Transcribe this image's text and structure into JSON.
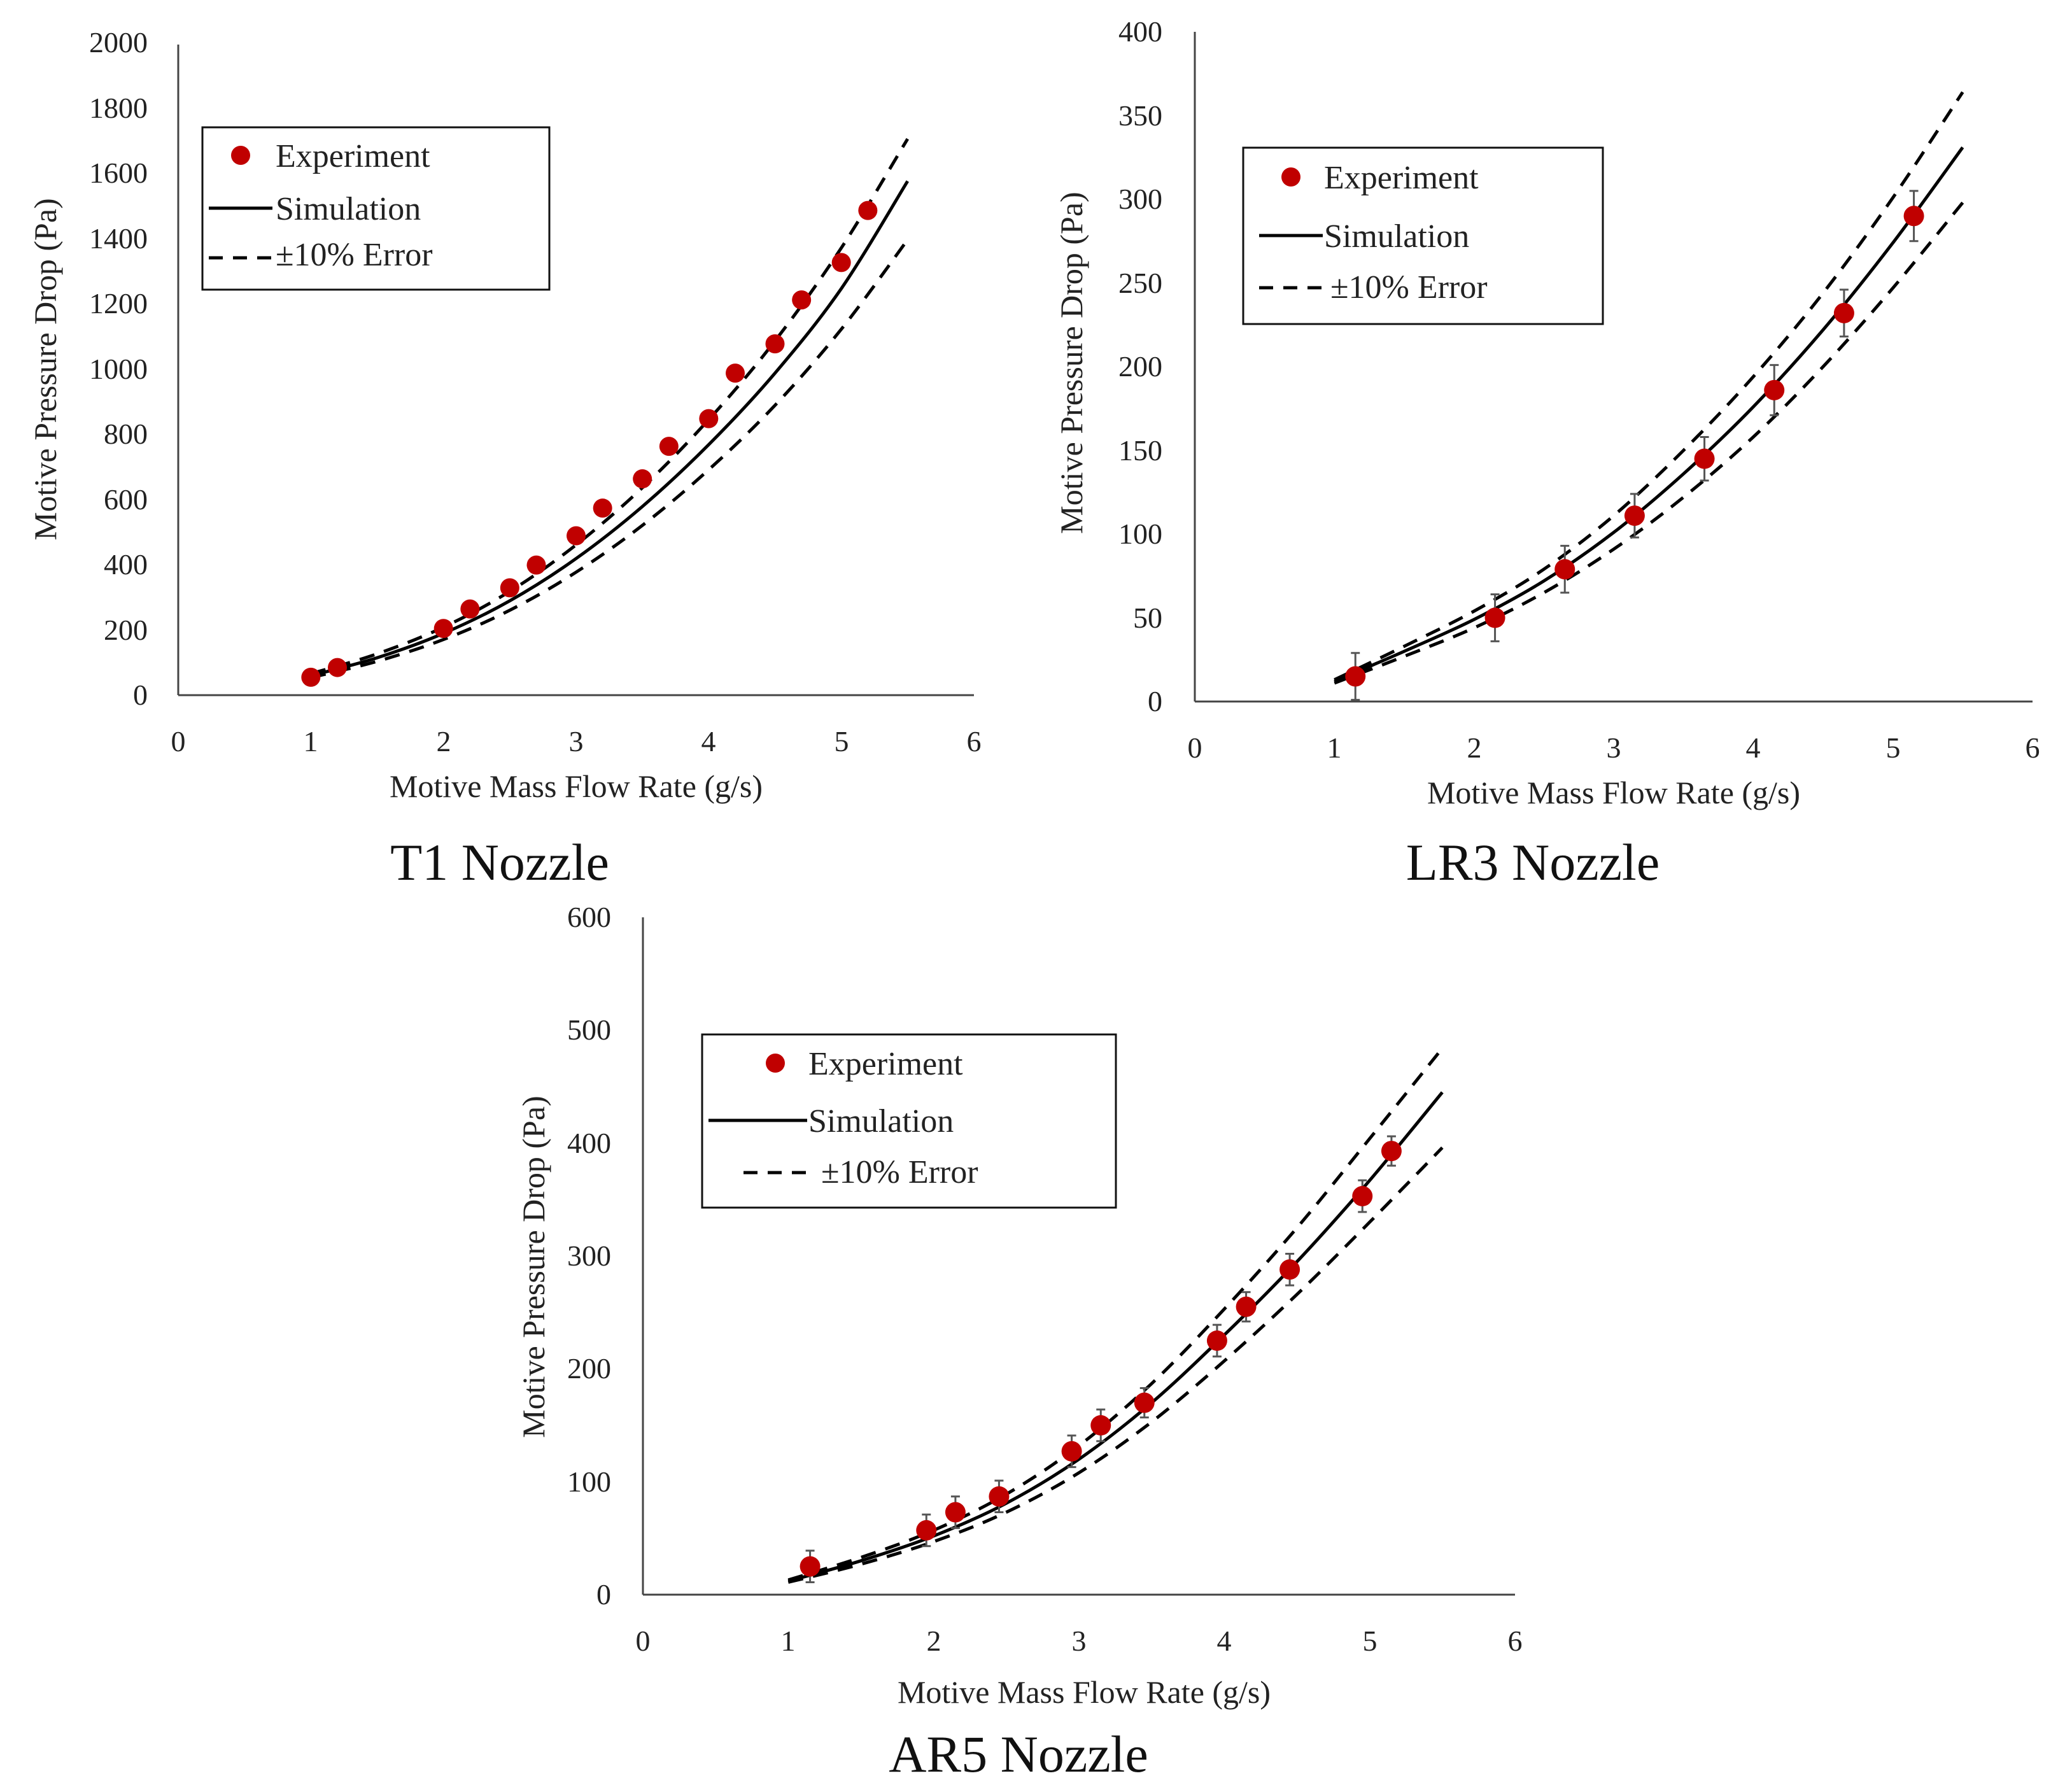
{
  "chart_data": [
    {
      "id": "t1",
      "type": "scatter",
      "title": "T1 Nozzle",
      "xlabel": "Motive Mass Flow Rate (g/s)",
      "ylabel": "Motive Pressure Drop (Pa)",
      "xlim": [
        0,
        6
      ],
      "ylim": [
        0,
        2000
      ],
      "xticks": [
        0,
        1,
        2,
        3,
        4,
        5,
        6
      ],
      "yticks": [
        0,
        200,
        400,
        600,
        800,
        1000,
        1200,
        1400,
        1600,
        1800,
        2000
      ],
      "legend": {
        "position": "top-left",
        "experiment": "Experiment",
        "simulation": "Simulation",
        "error": "±10% Error"
      },
      "error_bars": false,
      "series": [
        {
          "name": "Experiment",
          "style": "marker",
          "color": "#c00000",
          "x": [
            1.0,
            1.2,
            2.0,
            2.2,
            2.5,
            2.7,
            3.0,
            3.2,
            3.5,
            3.7,
            4.0,
            4.2,
            4.5,
            4.7,
            5.0,
            5.2
          ],
          "y": [
            55,
            85,
            205,
            265,
            330,
            400,
            490,
            575,
            665,
            765,
            850,
            990,
            1080,
            1215,
            1330,
            1490
          ]
        },
        {
          "name": "Simulation",
          "style": "solid",
          "color": "#000000",
          "x": [
            1.0,
            1.5,
            2.0,
            2.5,
            3.0,
            3.5,
            4.0,
            4.5,
            5.0,
            5.5
          ],
          "y": [
            60,
            115,
            190,
            290,
            420,
            580,
            770,
            990,
            1250,
            1580
          ]
        },
        {
          "name": "+10% Error",
          "style": "dashed",
          "color": "#000000",
          "x": [
            1.0,
            1.5,
            2.0,
            2.5,
            3.0,
            3.5,
            4.0,
            4.5,
            5.0,
            5.5
          ],
          "y": [
            66,
            127,
            209,
            319,
            462,
            638,
            847,
            1089,
            1375,
            1710
          ]
        },
        {
          "name": "-10% Error",
          "style": "dashed",
          "color": "#000000",
          "x": [
            1.0,
            1.5,
            2.0,
            2.5,
            3.0,
            3.5,
            4.0,
            4.5,
            5.0,
            5.5
          ],
          "y": [
            54,
            104,
            171,
            261,
            378,
            522,
            693,
            891,
            1125,
            1400
          ]
        }
      ]
    },
    {
      "id": "lr3",
      "type": "scatter",
      "title": "LR3 Nozzle",
      "xlabel": "Motive Mass Flow Rate (g/s)",
      "ylabel": "Motive Pressure Drop (Pa)",
      "xlim": [
        0,
        6
      ],
      "ylim": [
        0,
        400
      ],
      "xticks": [
        0,
        1,
        2,
        3,
        4,
        5,
        6
      ],
      "yticks": [
        0,
        50,
        100,
        150,
        200,
        250,
        300,
        350,
        400
      ],
      "legend": {
        "position": "top-left",
        "experiment": "Experiment",
        "simulation": "Simulation",
        "error": "±10% Error"
      },
      "error_bars": true,
      "series": [
        {
          "name": "Experiment",
          "style": "marker",
          "color": "#c00000",
          "x": [
            1.15,
            2.15,
            2.65,
            3.15,
            3.65,
            4.15,
            4.65,
            5.15
          ],
          "y": [
            15,
            50,
            79,
            111,
            145,
            186,
            232,
            290
          ],
          "err": [
            14,
            14,
            14,
            13,
            13,
            15,
            14,
            15
          ]
        },
        {
          "name": "Simulation",
          "style": "solid",
          "color": "#000000",
          "x": [
            1.0,
            1.5,
            2.0,
            2.5,
            3.0,
            3.5,
            4.0,
            4.5,
            5.0,
            5.5
          ],
          "y": [
            12,
            30,
            49,
            72,
            101,
            136,
            176,
            222,
            274,
            331
          ]
        },
        {
          "name": "+10% Error",
          "style": "dashed",
          "color": "#000000",
          "x": [
            1.0,
            1.5,
            2.0,
            2.5,
            3.0,
            3.5,
            4.0,
            4.5,
            5.0,
            5.5
          ],
          "y": [
            13,
            33,
            54,
            79,
            111,
            150,
            194,
            244,
            301,
            364
          ]
        },
        {
          "name": "-10% Error",
          "style": "dashed",
          "color": "#000000",
          "x": [
            1.0,
            1.5,
            2.0,
            2.5,
            3.0,
            3.5,
            4.0,
            4.5,
            5.0,
            5.5
          ],
          "y": [
            11,
            27,
            44,
            65,
            91,
            122,
            158,
            200,
            247,
            298
          ]
        }
      ]
    },
    {
      "id": "ar5",
      "type": "scatter",
      "title": "AR5 Nozzle",
      "xlabel": "Motive Mass Flow Rate (g/s)",
      "ylabel": "Motive Pressure Drop (Pa)",
      "xlim": [
        0,
        6
      ],
      "ylim": [
        0,
        600
      ],
      "xticks": [
        0,
        1,
        2,
        3,
        4,
        5,
        6
      ],
      "yticks": [
        0,
        100,
        200,
        300,
        400,
        500,
        600
      ],
      "legend": {
        "position": "top-left",
        "experiment": "Experiment",
        "simulation": "Simulation",
        "error": "±10% Error"
      },
      "error_bars": true,
      "series": [
        {
          "name": "Experiment",
          "style": "marker",
          "color": "#c00000",
          "x": [
            1.15,
            1.95,
            2.15,
            2.45,
            2.95,
            3.15,
            3.45,
            3.95,
            4.15,
            4.45,
            4.95,
            5.15
          ],
          "y": [
            25,
            57,
            73,
            87,
            127,
            150,
            170,
            225,
            255,
            288,
            353,
            393
          ],
          "err": [
            14,
            14,
            14,
            14,
            14,
            14,
            13,
            14,
            13,
            14,
            14,
            13
          ]
        },
        {
          "name": "Simulation",
          "style": "solid",
          "color": "#000000",
          "x": [
            1.0,
            1.5,
            2.0,
            2.5,
            3.0,
            3.5,
            4.0,
            4.5,
            5.0,
            5.5
          ],
          "y": [
            12,
            30,
            52,
            81,
            120,
            170,
            230,
            295,
            367,
            445
          ]
        },
        {
          "name": "+10% Error",
          "style": "dashed",
          "color": "#000000",
          "x": [
            1.0,
            1.5,
            2.0,
            2.5,
            3.0,
            3.5,
            4.0,
            4.5,
            5.0,
            5.5
          ],
          "y": [
            13,
            33,
            57,
            89,
            132,
            187,
            253,
            325,
            404,
            484
          ]
        },
        {
          "name": "-10% Error",
          "style": "dashed",
          "color": "#000000",
          "x": [
            1.0,
            1.5,
            2.0,
            2.5,
            3.0,
            3.5,
            4.0,
            4.5,
            5.0,
            5.5
          ],
          "y": [
            11,
            27,
            47,
            73,
            108,
            153,
            207,
            266,
            330,
            396
          ]
        }
      ]
    }
  ]
}
